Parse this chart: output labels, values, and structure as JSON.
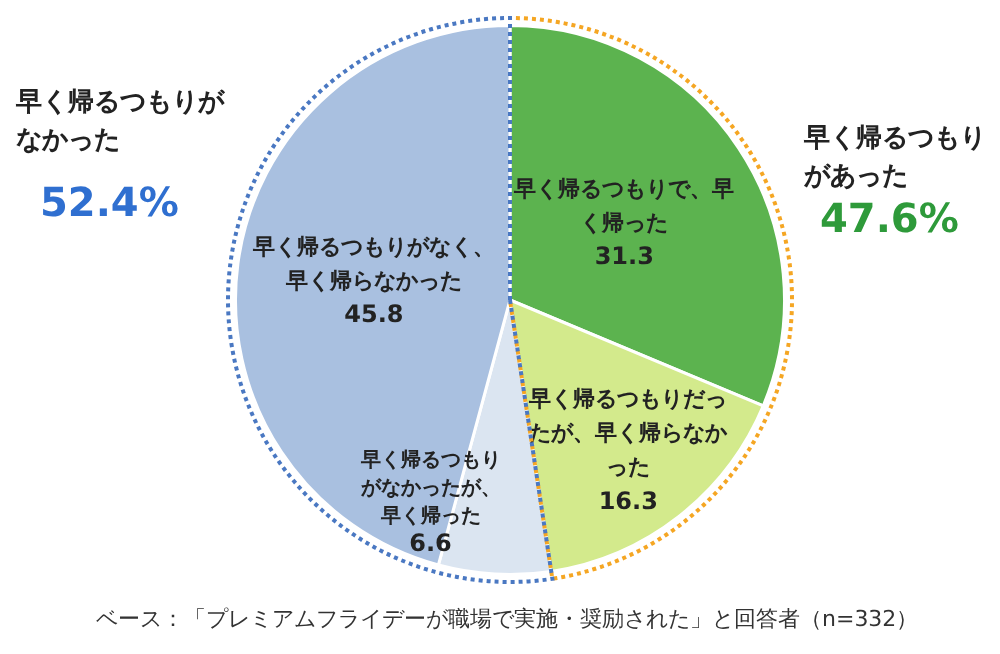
{
  "chart_data": {
    "type": "pie",
    "categories": [
      "早く帰るつもりで、早く帰った",
      "早く帰るつもりだったが、早く帰らなかった",
      "早く帰るつもりがなかったが、早く帰った",
      "早く帰るつもりがなく、早く帰らなかった"
    ],
    "values": [
      31.3,
      16.3,
      6.6,
      45.8
    ],
    "colors": [
      "#5cb34f",
      "#d3ea8c",
      "#dbe5f1",
      "#a9c0e0"
    ],
    "data_labels": true,
    "legend": false,
    "annotations": [
      "早く帰るつもりがなかった",
      "52.4%",
      "早く帰るつもりがあった",
      "47.6%",
      "ベース：「プレミアムフライデーが職場で実施・奨励された」と回答者（n=332）"
    ]
  }
}
